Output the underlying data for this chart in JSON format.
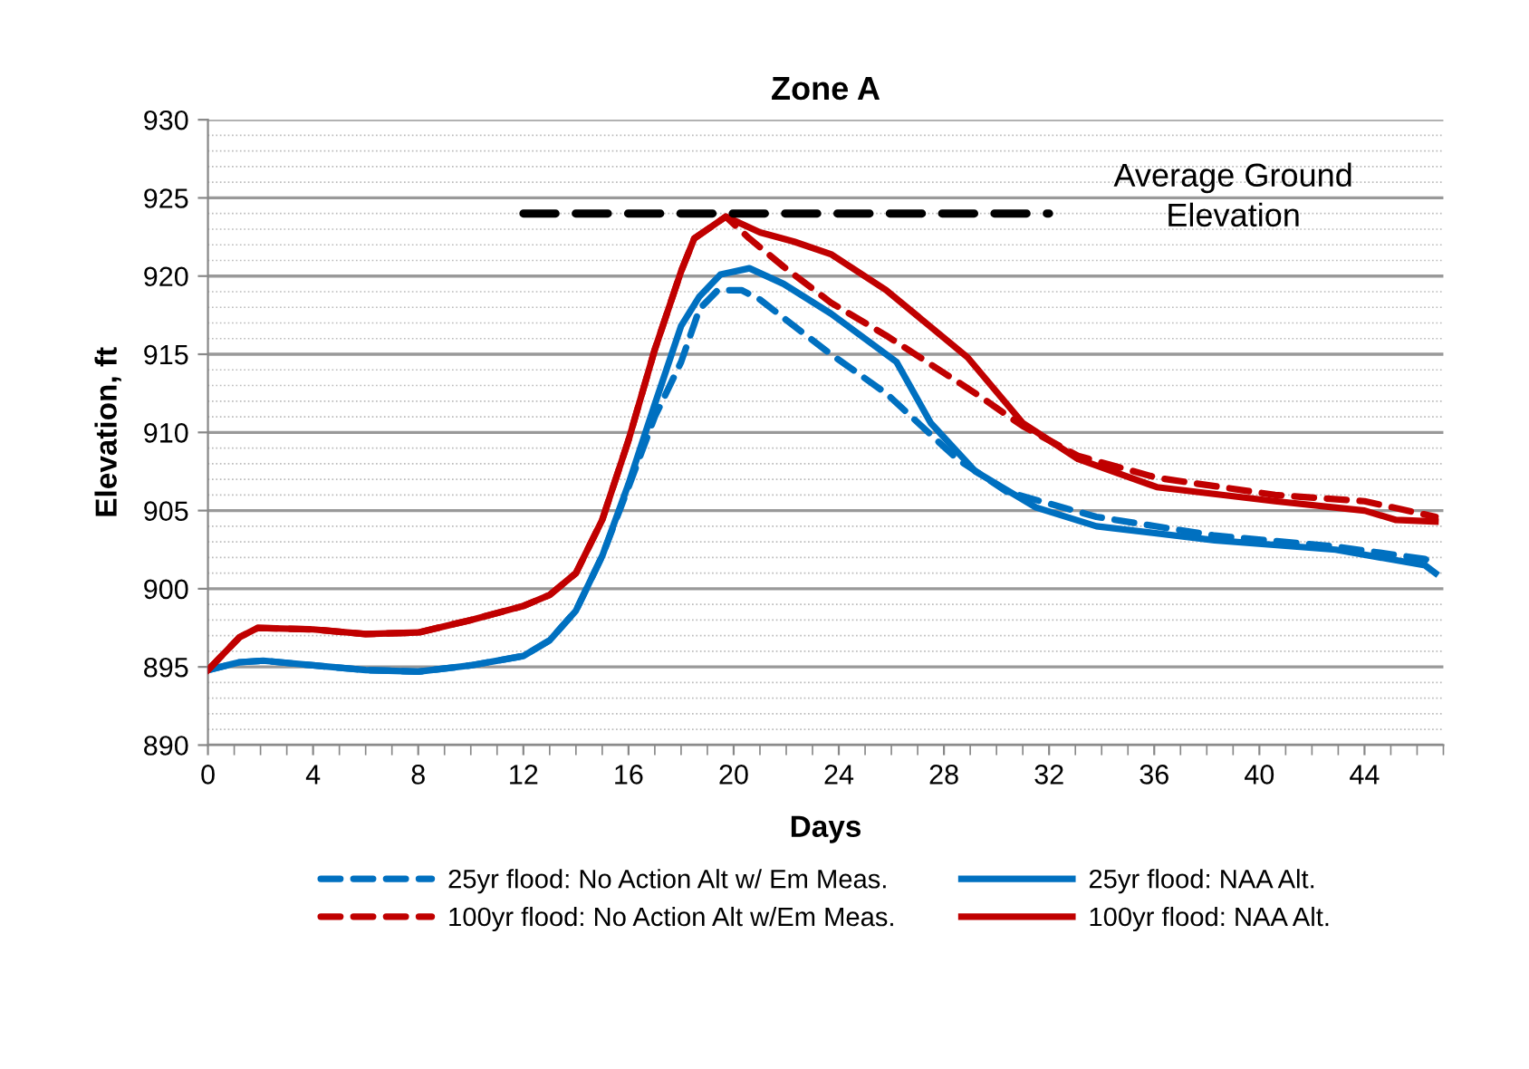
{
  "chart_data": {
    "type": "line",
    "title": "Zone A",
    "xlabel": "Days",
    "ylabel": "Elevation, ft",
    "xlim": [
      0,
      47
    ],
    "xticks": [
      0,
      4,
      8,
      12,
      16,
      20,
      24,
      28,
      32,
      36,
      40,
      44
    ],
    "ylim": [
      890,
      930
    ],
    "yticks": [
      890,
      895,
      900,
      905,
      910,
      915,
      920,
      925,
      930
    ],
    "grid": "y",
    "legend": "bottom",
    "marker": "none",
    "series": [
      {
        "name": "25yr flood: No Action Alt w/ Em Meas.",
        "color": "#0070c0",
        "line_style": "dashed",
        "x": [
          0,
          1.2,
          2.1,
          4,
          6,
          8,
          10,
          12,
          13,
          14,
          15,
          16,
          17,
          18,
          18.7,
          19.4,
          20.3,
          21,
          22.3,
          23.7,
          25.8,
          28.5,
          30.4,
          33.8,
          38.3,
          42.9,
          46.3,
          46.7
        ],
        "values": [
          894.8,
          895.3,
          895.4,
          895.1,
          894.8,
          894.7,
          895.1,
          895.7,
          896.7,
          898.6,
          902.1,
          906.5,
          911.0,
          914.5,
          917.9,
          919.1,
          919.1,
          918.5,
          916.8,
          915.0,
          912.5,
          908.3,
          906.2,
          904.6,
          903.4,
          902.7,
          901.9,
          901.5
        ]
      },
      {
        "name": "25yr flood: NAA Alt.",
        "color": "#0070c0",
        "line_style": "solid",
        "x": [
          0,
          1.2,
          2.1,
          4,
          6,
          8,
          10,
          12,
          13,
          14,
          15,
          16,
          17,
          18,
          18.7,
          19.5,
          20.6,
          21.9,
          23.7,
          26.2,
          27.5,
          29.2,
          31.5,
          33.8,
          38.3,
          42.9,
          46.3,
          46.7
        ],
        "values": [
          894.8,
          895.3,
          895.4,
          895.1,
          894.8,
          894.7,
          895.1,
          895.7,
          896.7,
          898.6,
          902.1,
          906.7,
          911.8,
          916.8,
          918.7,
          920.1,
          920.5,
          919.5,
          917.6,
          914.5,
          910.6,
          907.5,
          905.2,
          904.0,
          903.1,
          902.5,
          901.5,
          901.0
        ]
      },
      {
        "name": "100yr flood: No Action Alt w/Em Meas.",
        "color": "#c00000",
        "line_style": "dashed",
        "x": [
          0,
          1.2,
          1.9,
          4,
          6,
          8,
          10,
          12,
          13,
          14,
          15,
          16,
          17,
          18,
          18.5,
          19.7,
          20.6,
          21.9,
          23.7,
          25.8,
          29.2,
          31.0,
          33.1,
          36.1,
          40.6,
          44.0,
          46.7
        ],
        "values": [
          894.8,
          896.9,
          897.5,
          897.4,
          897.1,
          897.2,
          898.0,
          898.9,
          899.6,
          901.0,
          904.4,
          909.5,
          915.3,
          920.3,
          922.4,
          923.8,
          922.4,
          920.6,
          918.3,
          916.2,
          912.5,
          910.4,
          908.5,
          907.1,
          906.0,
          905.6,
          904.6
        ]
      },
      {
        "name": "100yr flood: NAA Alt.",
        "color": "#c00000",
        "line_style": "solid",
        "x": [
          0,
          1.2,
          1.9,
          4,
          6,
          8,
          10,
          12,
          13,
          14,
          15,
          16,
          17,
          18,
          18.5,
          19.7,
          21,
          22.3,
          23.7,
          25.8,
          28.9,
          31.0,
          33.1,
          36.1,
          40.6,
          44.0,
          45.2,
          46.7
        ],
        "values": [
          894.8,
          896.9,
          897.5,
          897.4,
          897.1,
          897.2,
          898.0,
          898.9,
          899.6,
          901.0,
          904.4,
          909.5,
          915.3,
          920.3,
          922.4,
          923.8,
          922.8,
          922.2,
          921.4,
          919.1,
          914.8,
          910.6,
          908.3,
          906.5,
          905.6,
          905.0,
          904.4,
          904.3
        ]
      },
      {
        "color": "#000000",
        "line_style": "dashed",
        "x": [
          12,
          32
        ],
        "values": [
          924,
          924
        ]
      }
    ],
    "annotations": [
      "Average Ground\nElevation"
    ]
  }
}
